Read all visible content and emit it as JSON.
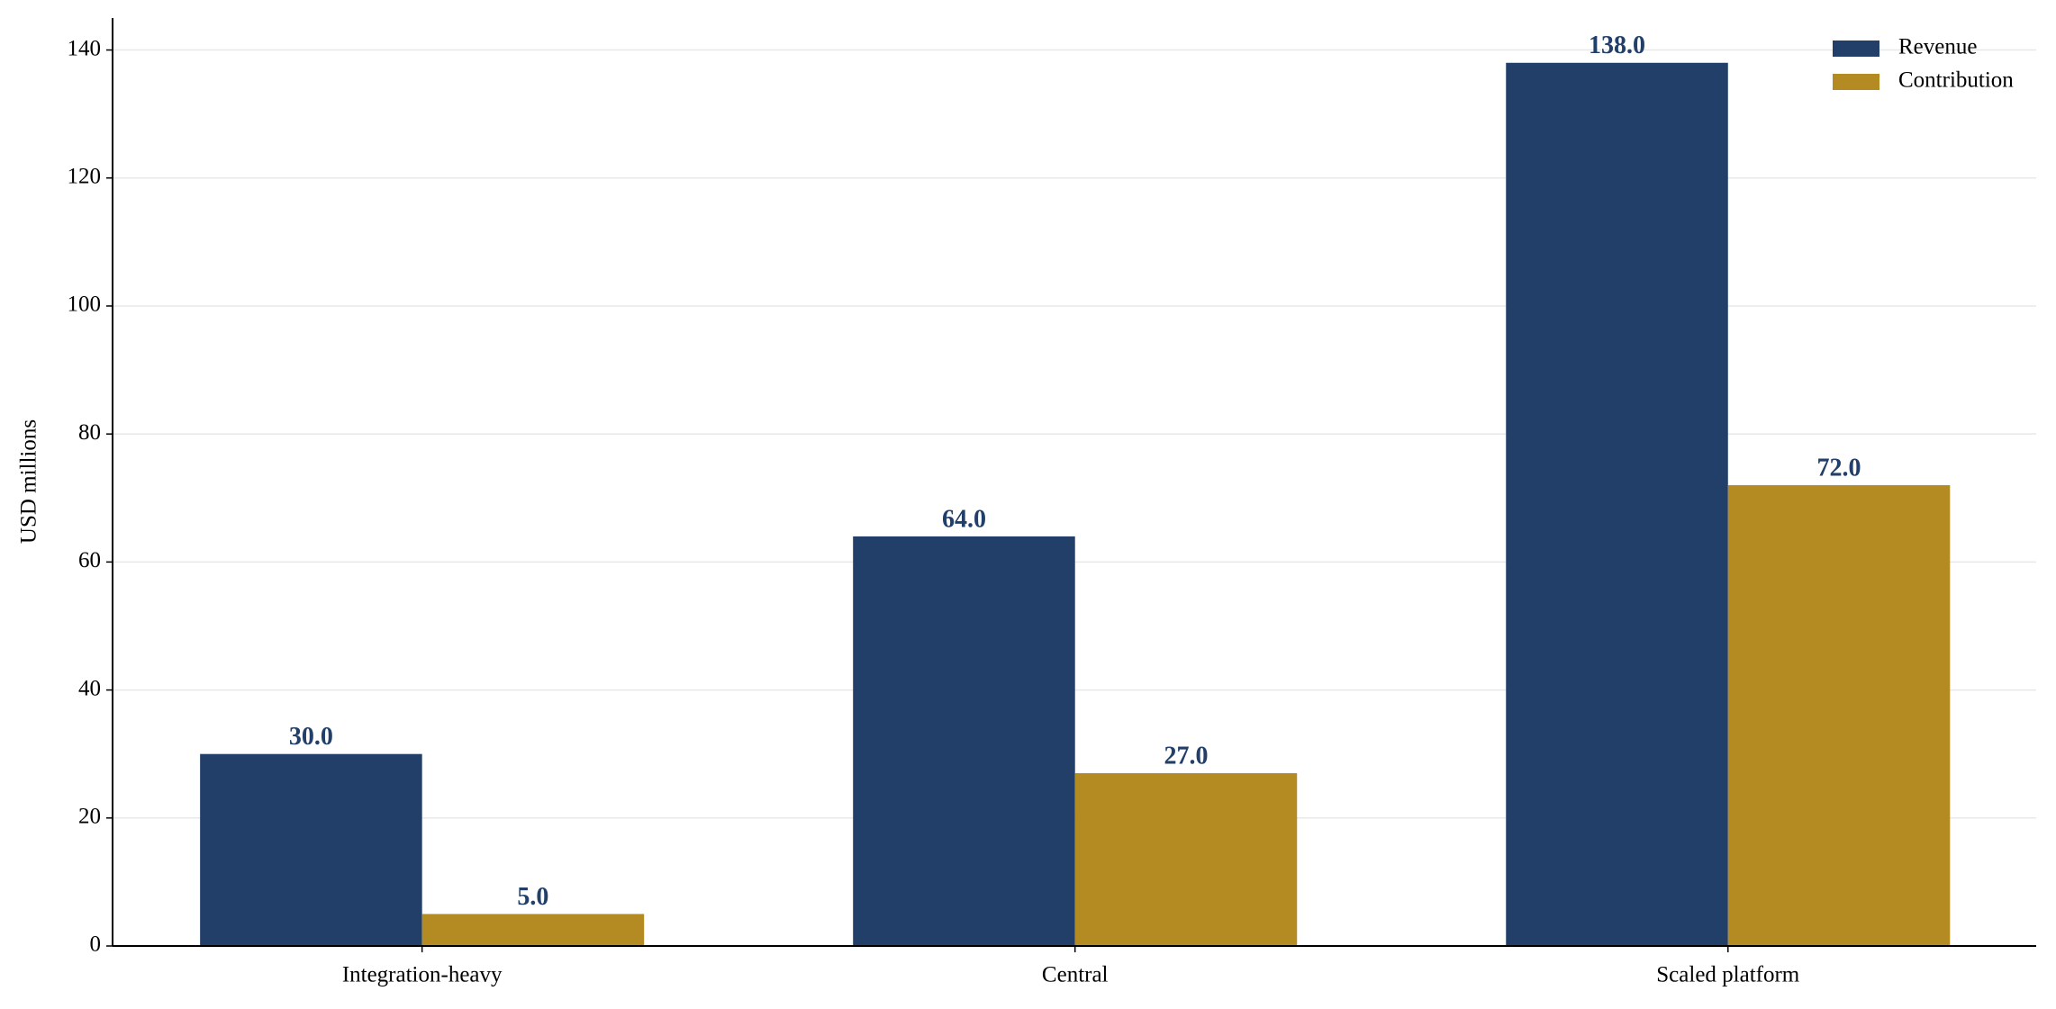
{
  "chart_data": {
    "type": "bar",
    "y_label": "USD millions",
    "categories": [
      "Integration-heavy",
      "Central",
      "Scaled platform"
    ],
    "series": [
      {
        "name": "Revenue",
        "color": "#213f69",
        "values": [
          30,
          64,
          138
        ],
        "value_labels": [
          "30.0",
          "64.0",
          "138.0"
        ]
      },
      {
        "name": "Contribution",
        "color": "#b38b22",
        "values": [
          5,
          27,
          72
        ],
        "value_labels": [
          "5.0",
          "27.0",
          "72.0"
        ]
      }
    ],
    "ylim": [
      0,
      145
    ],
    "yticks": [
      0,
      20,
      40,
      60,
      80,
      100,
      120,
      140
    ],
    "grid": true,
    "legend": "upper right"
  }
}
